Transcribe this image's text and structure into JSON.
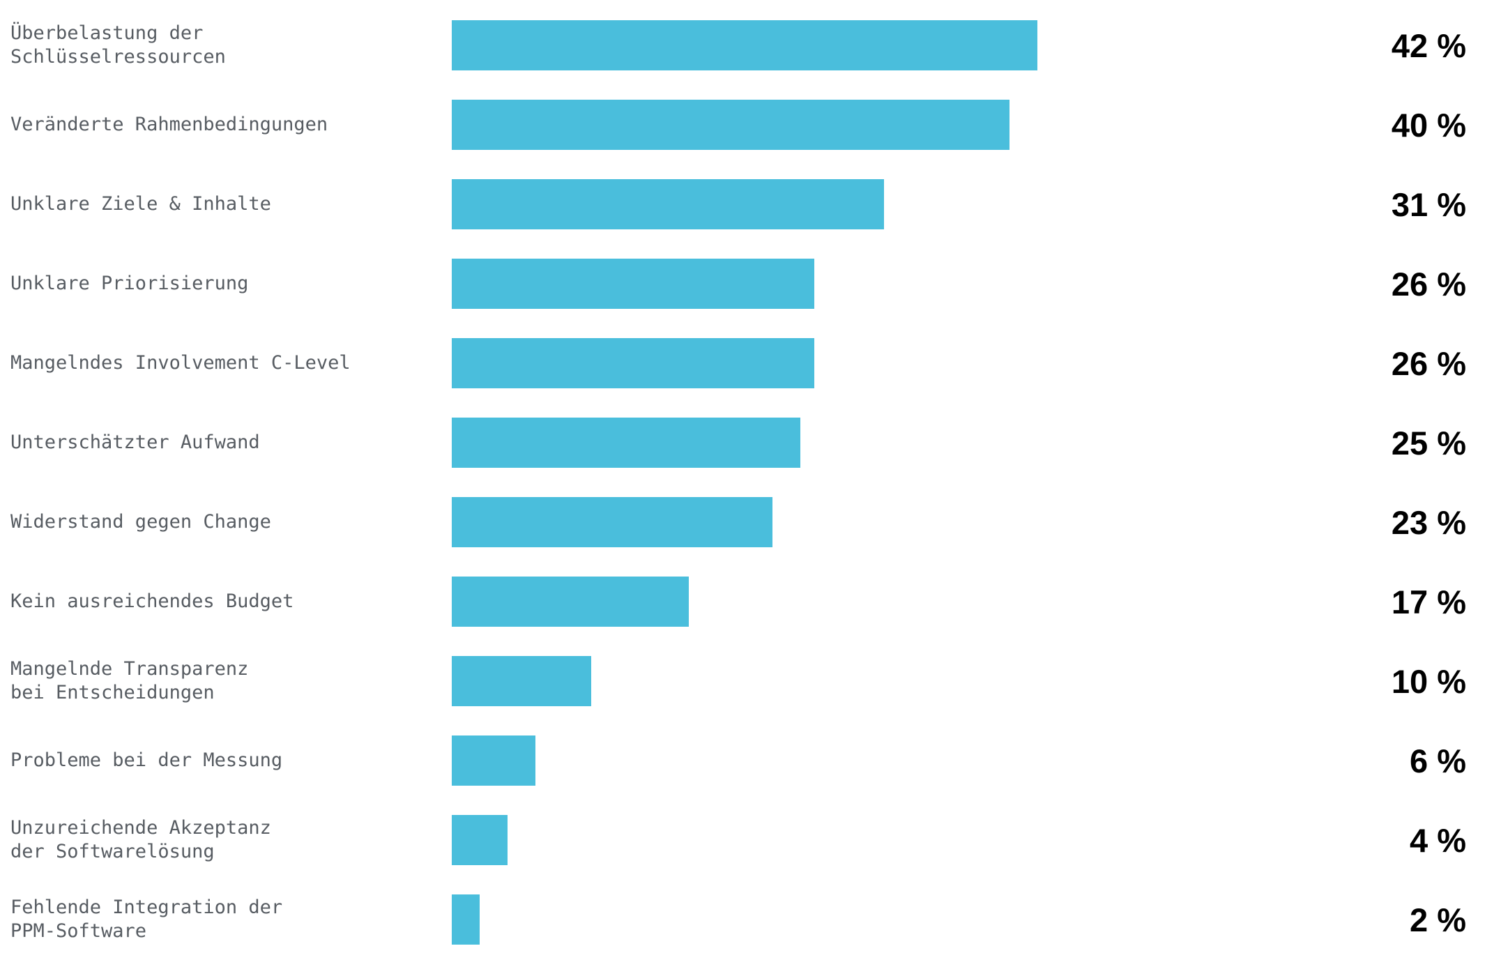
{
  "chart_data": {
    "type": "bar",
    "orientation": "horizontal",
    "title": "",
    "xlabel": "",
    "ylabel": "",
    "grid": false,
    "legend": false,
    "xlim": [
      0,
      42
    ],
    "categories": [
      "Überbelastung der\nSchlüsselressourcen",
      "Veränderte Rahmenbedingungen",
      "Unklare Ziele & Inhalte",
      "Unklare Priorisierung",
      "Mangelndes Involvement C-Level",
      "Unterschätzter Aufwand",
      "Widerstand gegen Change",
      "Kein ausreichendes Budget",
      "Mangelnde Transparenz\nbei Entscheidungen",
      "Probleme bei der Messung",
      "Unzureichende Akzeptanz\nder Softwarelösung",
      "Fehlende Integration der\nPPM-Software"
    ],
    "values": [
      42,
      40,
      31,
      26,
      26,
      25,
      23,
      17,
      10,
      6,
      4,
      2
    ],
    "value_labels": [
      "42 %",
      "40 %",
      "31 %",
      "26 %",
      "26 %",
      "25 %",
      "23 %",
      "17 %",
      "10 %",
      "6 %",
      "4 %",
      "2 %"
    ],
    "colors": {
      "bar": "#4ABEDC",
      "label": "#575C62",
      "value": "#000000",
      "background": "#FFFFFF"
    }
  }
}
